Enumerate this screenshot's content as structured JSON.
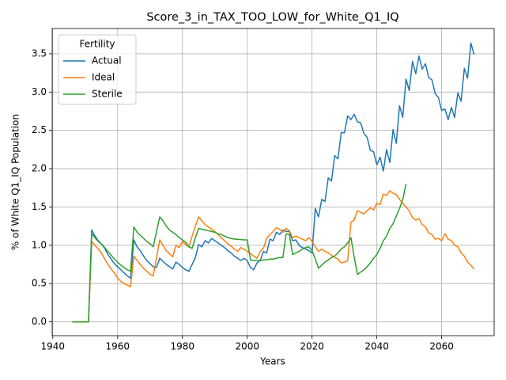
{
  "chart_data": {
    "type": "line",
    "title": "Score_3_in_TAX_TOO_LOW_for_White_Q1_IQ",
    "xlabel": "Years",
    "ylabel": "% of White Q1_IQ Population",
    "legend_title": "Fertility",
    "legend": "upper left",
    "grid": true,
    "x": [
      1946,
      1947,
      1948,
      1949,
      1950,
      1951,
      1952,
      1953,
      1954,
      1955,
      1956,
      1957,
      1958,
      1959,
      1960,
      1961,
      1962,
      1963,
      1964,
      1965,
      1966,
      1967,
      1968,
      1969,
      1970,
      1971,
      1972,
      1973,
      1974,
      1975,
      1976,
      1977,
      1978,
      1979,
      1980,
      1981,
      1982,
      1983,
      1984,
      1985,
      1986,
      1987,
      1988,
      1989,
      1990,
      1991,
      1992,
      1993,
      1994,
      1995,
      1996,
      1997,
      1998,
      1999,
      2000,
      2001,
      2002,
      2003,
      2004,
      2005,
      2006,
      2007,
      2008,
      2009,
      2010,
      2011,
      2012,
      2013,
      2014,
      2015,
      2016,
      2017,
      2018,
      2019,
      2020,
      2021,
      2022,
      2023,
      2024,
      2025,
      2026,
      2027,
      2028,
      2029,
      2030,
      2031,
      2032,
      2033,
      2034,
      2035,
      2036,
      2037,
      2038,
      2039,
      2040,
      2041,
      2042,
      2043,
      2044,
      2045,
      2046,
      2047,
      2048,
      2049,
      2050,
      2051,
      2052,
      2053,
      2054,
      2055,
      2056,
      2057,
      2058,
      2059,
      2060,
      2061,
      2062,
      2063,
      2064,
      2065,
      2066,
      2067,
      2068,
      2069,
      2070
    ],
    "series": [
      {
        "name": "Actual",
        "color": "#1f77b4",
        "values": [
          0,
          0,
          0,
          0,
          0,
          0,
          1.2,
          1.12,
          1.06,
          1.02,
          0.96,
          0.88,
          0.82,
          0.76,
          0.72,
          0.68,
          0.64,
          0.6,
          0.57,
          1.07,
          0.98,
          0.93,
          0.86,
          0.8,
          0.76,
          0.72,
          0.71,
          0.83,
          0.79,
          0.75,
          0.72,
          0.69,
          0.78,
          0.75,
          0.71,
          0.68,
          0.66,
          0.75,
          0.84,
          1.01,
          0.98,
          1.06,
          1.03,
          1.09,
          1.06,
          1.03,
          1.0,
          0.97,
          0.93,
          0.9,
          0.86,
          0.83,
          0.8,
          0.83,
          0.8,
          0.71,
          0.68,
          0.77,
          0.8,
          0.92,
          0.9,
          1.08,
          1.06,
          1.17,
          1.14,
          1.2,
          1.18,
          1.18,
          1.06,
          1.07,
          1.0,
          0.97,
          0.95,
          0.93,
          0.9,
          1.48,
          1.37,
          1.6,
          1.57,
          1.88,
          1.84,
          2.17,
          2.13,
          2.47,
          2.47,
          2.69,
          2.64,
          2.71,
          2.61,
          2.6,
          2.46,
          2.41,
          2.24,
          2.22,
          2.05,
          2.15,
          1.97,
          2.25,
          2.08,
          2.51,
          2.33,
          2.82,
          2.67,
          3.17,
          3.02,
          3.4,
          3.24,
          3.47,
          3.3,
          3.37,
          3.19,
          3.16,
          2.98,
          2.93,
          2.76,
          2.78,
          2.64,
          2.8,
          2.67,
          2.99,
          2.88,
          3.31,
          3.18,
          3.64,
          3.49
        ]
      },
      {
        "name": "Ideal",
        "color": "#ff7f0e",
        "values": [
          0,
          0,
          0,
          0,
          0,
          0,
          1.05,
          1.0,
          0.95,
          0.9,
          0.82,
          0.75,
          0.69,
          0.64,
          0.57,
          0.53,
          0.5,
          0.48,
          0.46,
          0.86,
          0.8,
          0.75,
          0.7,
          0.66,
          0.62,
          0.6,
          0.84,
          1.07,
          1.0,
          0.93,
          0.89,
          0.85,
          1.0,
          0.97,
          1.05,
          1.01,
          0.98,
          1.12,
          1.25,
          1.37,
          1.32,
          1.27,
          1.24,
          1.21,
          1.18,
          1.14,
          1.1,
          1.06,
          1.02,
          0.99,
          0.95,
          0.92,
          0.97,
          0.95,
          0.92,
          0.89,
          0.86,
          0.83,
          0.92,
          0.96,
          1.09,
          1.14,
          1.18,
          1.23,
          1.21,
          1.17,
          1.22,
          1.19,
          1.1,
          1.12,
          1.1,
          1.08,
          1.06,
          1.1,
          1.05,
          0.98,
          0.92,
          0.95,
          0.92,
          0.9,
          0.87,
          0.84,
          0.82,
          0.77,
          0.78,
          0.8,
          1.3,
          1.33,
          1.45,
          1.43,
          1.41,
          1.45,
          1.49,
          1.46,
          1.55,
          1.53,
          1.67,
          1.65,
          1.71,
          1.68,
          1.66,
          1.6,
          1.55,
          1.5,
          1.45,
          1.36,
          1.33,
          1.35,
          1.27,
          1.24,
          1.16,
          1.14,
          1.08,
          1.09,
          1.06,
          1.15,
          1.08,
          1.06,
          1.0,
          0.98,
          0.9,
          0.86,
          0.78,
          0.74,
          0.69
        ]
      },
      {
        "name": "Sterile",
        "color": "#2ca02c",
        "values": [
          0,
          0,
          0,
          0,
          0,
          0,
          1.15,
          1.1,
          1.05,
          1.02,
          0.97,
          0.92,
          0.87,
          0.82,
          0.78,
          0.74,
          0.71,
          0.68,
          0.66,
          1.24,
          1.17,
          1.13,
          1.09,
          1.05,
          1.02,
          0.98,
          1.18,
          1.37,
          1.32,
          1.25,
          1.2,
          1.17,
          1.14,
          1.1,
          1.07,
          1.04,
          0.98,
          0.96,
          1.1,
          1.22,
          1.21,
          1.2,
          1.19,
          1.18,
          1.17,
          1.15,
          1.14,
          1.12,
          1.1,
          1.09,
          1.08,
          1.08,
          1.075,
          1.07,
          1.07,
          0.81,
          0.8,
          0.8,
          0.8,
          0.81,
          0.81,
          0.82,
          0.82,
          0.83,
          0.84,
          0.84,
          1.15,
          1.14,
          0.88,
          0.9,
          0.92,
          0.95,
          0.97,
          0.98,
          0.93,
          0.82,
          0.7,
          0.74,
          0.78,
          0.81,
          0.84,
          0.86,
          0.9,
          0.95,
          0.98,
          1.03,
          1.1,
          0.85,
          0.62,
          0.65,
          0.68,
          0.72,
          0.77,
          0.83,
          0.88,
          0.96,
          1.06,
          1.12,
          1.22,
          1.28,
          1.38,
          1.48,
          1.6,
          1.8,
          null,
          null,
          null,
          null,
          null,
          null,
          null,
          null,
          null,
          null,
          null,
          null,
          null,
          null,
          null,
          null,
          null,
          null,
          null,
          null,
          null
        ]
      }
    ],
    "xlim": [
      1939.8,
      2076.2
    ],
    "ylim": [
      -0.18,
      3.83
    ],
    "xticks": [
      1940,
      1960,
      1980,
      2000,
      2020,
      2040,
      2060
    ],
    "yticks": [
      {
        "value": 0,
        "label": "0.0"
      },
      0.5,
      {
        "value": 1,
        "label": "1.0"
      },
      1.5,
      {
        "value": 2,
        "label": "2.0"
      },
      2.5,
      {
        "value": 3,
        "label": "3.0"
      },
      3.5
    ]
  }
}
